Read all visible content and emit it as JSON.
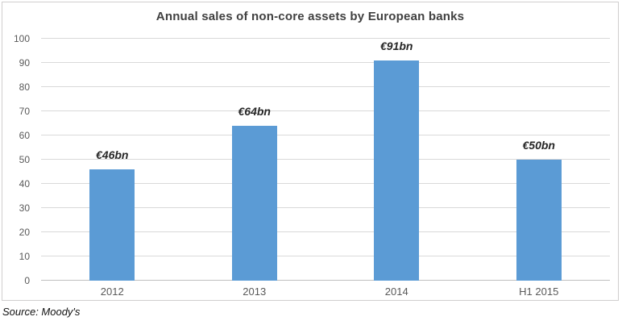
{
  "colors": {
    "bar": "#5b9bd5",
    "gridline": "#d9d9d9",
    "zero_line": "#bfbfbf",
    "axis_text": "#595959",
    "title_text": "#404040",
    "data_label_text": "#262626",
    "chart_border": "#d0cece"
  },
  "source_note": "Source: Moody's",
  "chart_data": {
    "type": "bar",
    "title": "Annual sales of non-core assets by European banks",
    "categories": [
      "2012",
      "2013",
      "2014",
      "H1 2015"
    ],
    "values": [
      46,
      64,
      91,
      50
    ],
    "data_labels": [
      "€46bn",
      "€64bn",
      "€91bn",
      "€50bn"
    ],
    "xlabel": "",
    "ylabel": "",
    "ylim": [
      0,
      100
    ],
    "ytick_interval": 10,
    "yticks": [
      0,
      10,
      20,
      30,
      40,
      50,
      60,
      70,
      80,
      90,
      100
    ],
    "grid": true,
    "legend": false,
    "bar_color": "#5b9bd5",
    "source": "Source: Moody's"
  }
}
